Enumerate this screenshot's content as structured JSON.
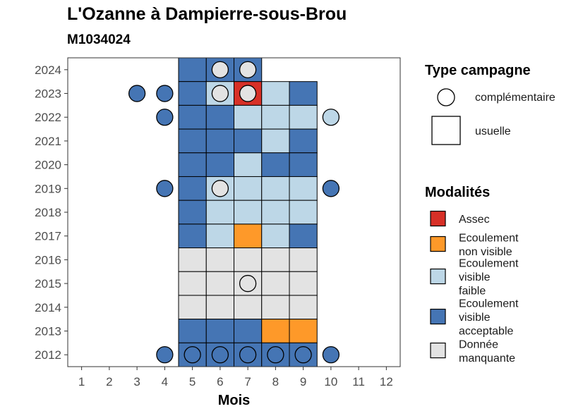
{
  "title": "L'Ozanne à Dampierre-sous-Brou",
  "subtitle": "M1034024",
  "colors": {
    "Assec": "#d73027",
    "Ecoulement non visible": "#fe9929",
    "Ecoulement visible faible": "#bdd7e7",
    "Ecoulement visible acceptable": "#4575b4",
    "Donnée manquante": "#e3e3e3"
  },
  "chart_data": {
    "type": "heatmap",
    "xlabel": "Mois",
    "ylabel": "",
    "x_ticks": [
      "1",
      "2",
      "3",
      "4",
      "5",
      "6",
      "7",
      "8",
      "9",
      "10",
      "11",
      "12"
    ],
    "y_ticks": [
      "2012",
      "2013",
      "2014",
      "2015",
      "2016",
      "2017",
      "2018",
      "2019",
      "2020",
      "2021",
      "2022",
      "2023",
      "2024"
    ],
    "xlim": [
      0.5,
      12.5
    ],
    "ylim": [
      2011.5,
      2024.5
    ],
    "grid": false,
    "legend_position": "right",
    "legends": [
      {
        "title": "Type campagne",
        "entries": [
          {
            "label": "complémentaire",
            "shape": "circle"
          },
          {
            "label": "usuelle",
            "shape": "square"
          }
        ]
      },
      {
        "title": "Modalités",
        "entries": [
          {
            "label": "Assec",
            "lines": [
              "Assec"
            ],
            "key": "Assec"
          },
          {
            "label": "Ecoulement non visible",
            "lines": [
              "Ecoulement",
              "non visible"
            ],
            "key": "Ecoulement non visible"
          },
          {
            "label": "Ecoulement visible faible",
            "lines": [
              "Ecoulement",
              "visible",
              "faible"
            ],
            "key": "Ecoulement visible faible"
          },
          {
            "label": "Ecoulement visible acceptable",
            "lines": [
              "Ecoulement",
              "visible",
              "acceptable"
            ],
            "key": "Ecoulement visible acceptable"
          },
          {
            "label": "Donnée manquante",
            "lines": [
              "Donnée",
              "manquante"
            ],
            "key": "Donnée manquante"
          }
        ]
      }
    ],
    "usuelle": [
      {
        "year": 2024,
        "month": 5,
        "value": "Ecoulement visible acceptable"
      },
      {
        "year": 2024,
        "month": 6,
        "value": "Ecoulement visible acceptable"
      },
      {
        "year": 2024,
        "month": 7,
        "value": "Ecoulement visible acceptable"
      },
      {
        "year": 2023,
        "month": 5,
        "value": "Ecoulement visible acceptable"
      },
      {
        "year": 2023,
        "month": 6,
        "value": "Ecoulement visible faible"
      },
      {
        "year": 2023,
        "month": 7,
        "value": "Assec"
      },
      {
        "year": 2023,
        "month": 8,
        "value": "Ecoulement visible faible"
      },
      {
        "year": 2023,
        "month": 9,
        "value": "Ecoulement visible acceptable"
      },
      {
        "year": 2022,
        "month": 5,
        "value": "Ecoulement visible acceptable"
      },
      {
        "year": 2022,
        "month": 6,
        "value": "Ecoulement visible acceptable"
      },
      {
        "year": 2022,
        "month": 7,
        "value": "Ecoulement visible faible"
      },
      {
        "year": 2022,
        "month": 8,
        "value": "Ecoulement visible faible"
      },
      {
        "year": 2022,
        "month": 9,
        "value": "Ecoulement visible faible"
      },
      {
        "year": 2021,
        "month": 5,
        "value": "Ecoulement visible acceptable"
      },
      {
        "year": 2021,
        "month": 6,
        "value": "Ecoulement visible acceptable"
      },
      {
        "year": 2021,
        "month": 7,
        "value": "Ecoulement visible acceptable"
      },
      {
        "year": 2021,
        "month": 8,
        "value": "Ecoulement visible faible"
      },
      {
        "year": 2021,
        "month": 9,
        "value": "Ecoulement visible acceptable"
      },
      {
        "year": 2020,
        "month": 5,
        "value": "Ecoulement visible acceptable"
      },
      {
        "year": 2020,
        "month": 6,
        "value": "Ecoulement visible acceptable"
      },
      {
        "year": 2020,
        "month": 7,
        "value": "Ecoulement visible faible"
      },
      {
        "year": 2020,
        "month": 8,
        "value": "Ecoulement visible acceptable"
      },
      {
        "year": 2020,
        "month": 9,
        "value": "Ecoulement visible acceptable"
      },
      {
        "year": 2019,
        "month": 5,
        "value": "Ecoulement visible acceptable"
      },
      {
        "year": 2019,
        "month": 6,
        "value": "Ecoulement visible faible"
      },
      {
        "year": 2019,
        "month": 7,
        "value": "Ecoulement visible faible"
      },
      {
        "year": 2019,
        "month": 8,
        "value": "Ecoulement visible faible"
      },
      {
        "year": 2019,
        "month": 9,
        "value": "Ecoulement visible faible"
      },
      {
        "year": 2018,
        "month": 5,
        "value": "Ecoulement visible acceptable"
      },
      {
        "year": 2018,
        "month": 6,
        "value": "Ecoulement visible faible"
      },
      {
        "year": 2018,
        "month": 7,
        "value": "Ecoulement visible faible"
      },
      {
        "year": 2018,
        "month": 8,
        "value": "Ecoulement visible faible"
      },
      {
        "year": 2018,
        "month": 9,
        "value": "Ecoulement visible faible"
      },
      {
        "year": 2017,
        "month": 5,
        "value": "Ecoulement visible acceptable"
      },
      {
        "year": 2017,
        "month": 6,
        "value": "Ecoulement visible faible"
      },
      {
        "year": 2017,
        "month": 7,
        "value": "Ecoulement non visible"
      },
      {
        "year": 2017,
        "month": 8,
        "value": "Ecoulement visible faible"
      },
      {
        "year": 2017,
        "month": 9,
        "value": "Ecoulement visible acceptable"
      },
      {
        "year": 2016,
        "month": 5,
        "value": "Donnée manquante"
      },
      {
        "year": 2016,
        "month": 6,
        "value": "Donnée manquante"
      },
      {
        "year": 2016,
        "month": 7,
        "value": "Donnée manquante"
      },
      {
        "year": 2016,
        "month": 8,
        "value": "Donnée manquante"
      },
      {
        "year": 2016,
        "month": 9,
        "value": "Donnée manquante"
      },
      {
        "year": 2015,
        "month": 5,
        "value": "Donnée manquante"
      },
      {
        "year": 2015,
        "month": 6,
        "value": "Donnée manquante"
      },
      {
        "year": 2015,
        "month": 7,
        "value": "Donnée manquante"
      },
      {
        "year": 2015,
        "month": 8,
        "value": "Donnée manquante"
      },
      {
        "year": 2015,
        "month": 9,
        "value": "Donnée manquante"
      },
      {
        "year": 2014,
        "month": 5,
        "value": "Donnée manquante"
      },
      {
        "year": 2014,
        "month": 6,
        "value": "Donnée manquante"
      },
      {
        "year": 2014,
        "month": 7,
        "value": "Donnée manquante"
      },
      {
        "year": 2014,
        "month": 8,
        "value": "Donnée manquante"
      },
      {
        "year": 2014,
        "month": 9,
        "value": "Donnée manquante"
      },
      {
        "year": 2013,
        "month": 5,
        "value": "Ecoulement visible acceptable"
      },
      {
        "year": 2013,
        "month": 6,
        "value": "Ecoulement visible acceptable"
      },
      {
        "year": 2013,
        "month": 7,
        "value": "Ecoulement visible acceptable"
      },
      {
        "year": 2013,
        "month": 8,
        "value": "Ecoulement non visible"
      },
      {
        "year": 2013,
        "month": 9,
        "value": "Ecoulement non visible"
      },
      {
        "year": 2012,
        "month": 5,
        "value": "Ecoulement visible acceptable"
      },
      {
        "year": 2012,
        "month": 6,
        "value": "Ecoulement visible acceptable"
      },
      {
        "year": 2012,
        "month": 7,
        "value": "Ecoulement visible acceptable"
      },
      {
        "year": 2012,
        "month": 8,
        "value": "Ecoulement visible acceptable"
      },
      {
        "year": 2012,
        "month": 9,
        "value": "Ecoulement visible acceptable"
      }
    ],
    "complementaire": [
      {
        "year": 2024,
        "month": 6,
        "value": "Donnée manquante"
      },
      {
        "year": 2024,
        "month": 7,
        "value": "Donnée manquante"
      },
      {
        "year": 2023,
        "month": 3,
        "value": "Ecoulement visible acceptable"
      },
      {
        "year": 2023,
        "month": 4,
        "value": "Ecoulement visible acceptable"
      },
      {
        "year": 2023,
        "month": 6,
        "value": "Donnée manquante"
      },
      {
        "year": 2023,
        "month": 7,
        "value": "Donnée manquante"
      },
      {
        "year": 2022,
        "month": 4,
        "value": "Ecoulement visible acceptable"
      },
      {
        "year": 2022,
        "month": 10,
        "value": "Ecoulement visible faible"
      },
      {
        "year": 2019,
        "month": 4,
        "value": "Ecoulement visible acceptable"
      },
      {
        "year": 2019,
        "month": 6,
        "value": "Donnée manquante"
      },
      {
        "year": 2019,
        "month": 10,
        "value": "Ecoulement visible acceptable"
      },
      {
        "year": 2015,
        "month": 7,
        "value": "Donnée manquante"
      },
      {
        "year": 2012,
        "month": 4,
        "value": "Ecoulement visible acceptable"
      },
      {
        "year": 2012,
        "month": 5,
        "value": "Ecoulement visible acceptable"
      },
      {
        "year": 2012,
        "month": 6,
        "value": "Ecoulement visible acceptable"
      },
      {
        "year": 2012,
        "month": 7,
        "value": "Ecoulement visible acceptable"
      },
      {
        "year": 2012,
        "month": 8,
        "value": "Ecoulement visible acceptable"
      },
      {
        "year": 2012,
        "month": 9,
        "value": "Ecoulement visible acceptable"
      },
      {
        "year": 2012,
        "month": 10,
        "value": "Ecoulement visible acceptable"
      }
    ]
  }
}
